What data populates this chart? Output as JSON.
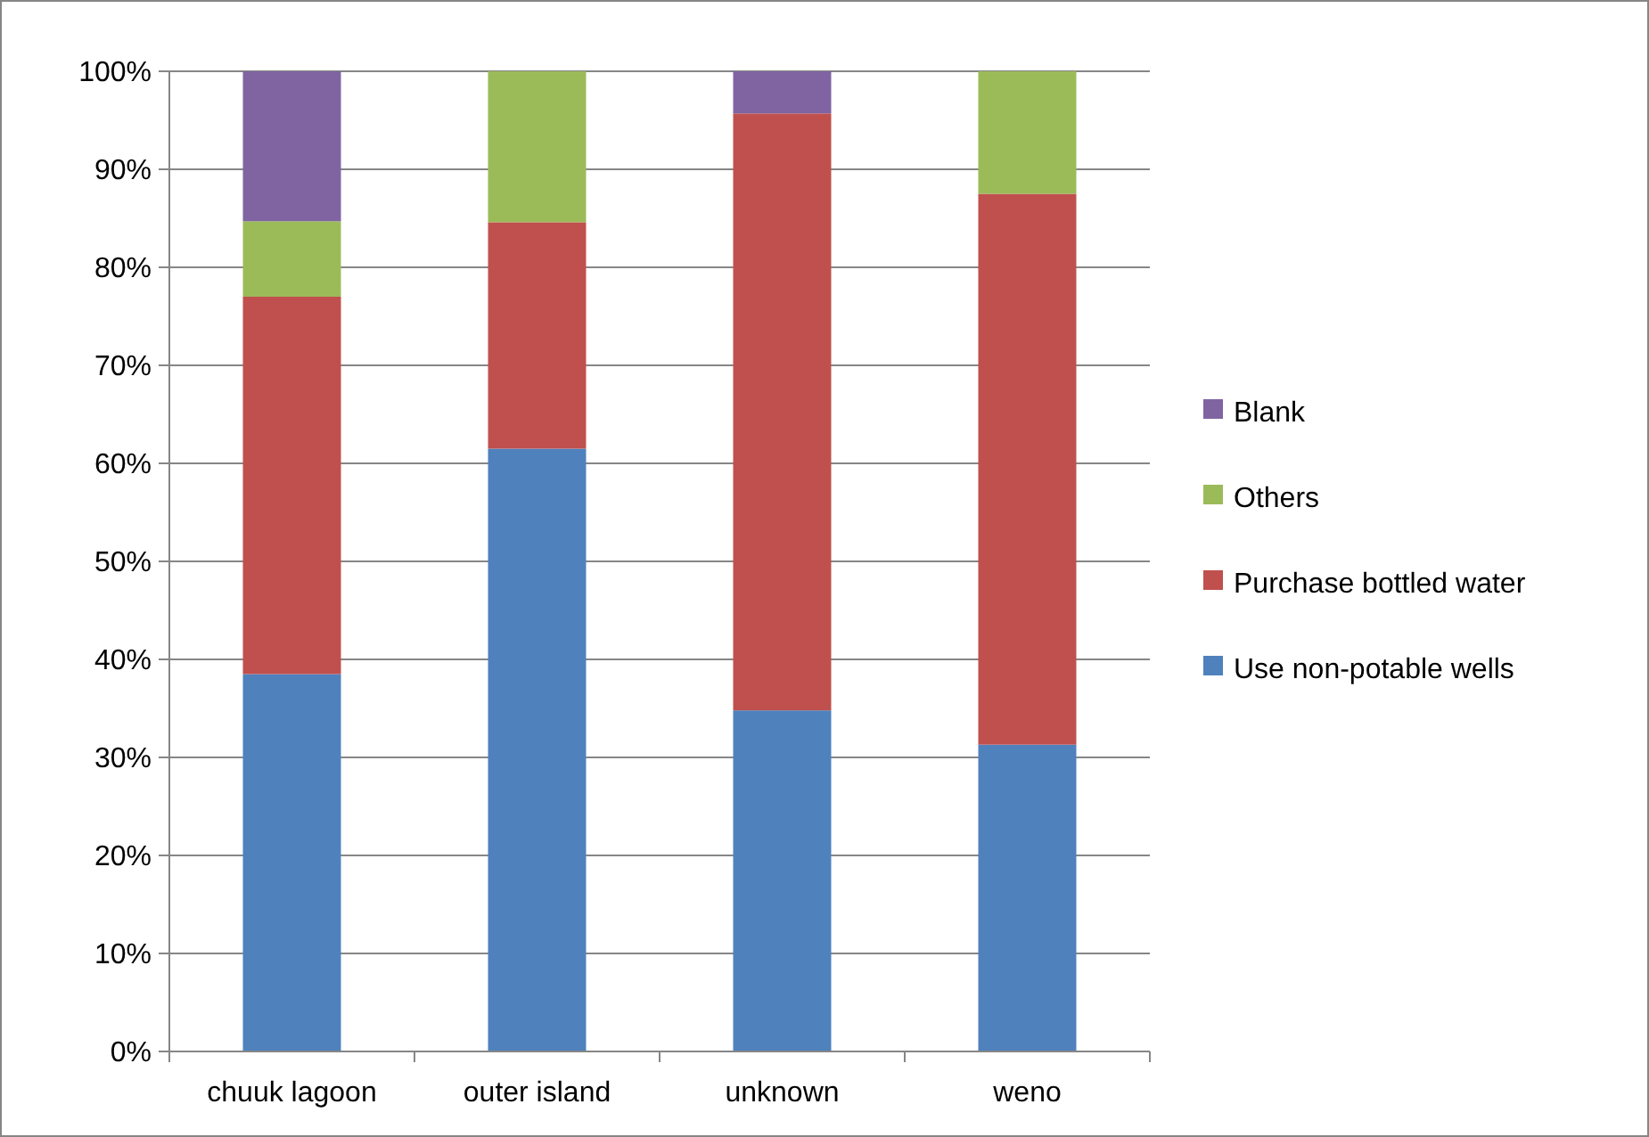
{
  "chart_data": {
    "type": "bar",
    "stacked": true,
    "categories": [
      "chuuk lagoon",
      "outer island",
      "unknown",
      "weno"
    ],
    "series": [
      {
        "name": "Use non-potable wells",
        "color": "#4f81bd",
        "values": [
          38.5,
          61.5,
          34.8,
          31.3
        ]
      },
      {
        "name": "Purchase bottled water",
        "color": "#c0504d",
        "values": [
          38.5,
          23.1,
          60.9,
          56.2
        ]
      },
      {
        "name": "Others",
        "color": "#9bbb59",
        "values": [
          7.7,
          15.4,
          null,
          12.5
        ]
      },
      {
        "name": "Blank",
        "color": "#8064a2",
        "values": [
          15.3,
          null,
          4.3,
          null
        ]
      }
    ],
    "ylim": [
      0,
      100
    ],
    "yticks": [
      {
        "value": 0,
        "label": "0%"
      },
      {
        "value": 10,
        "label": "10%"
      },
      {
        "value": 20,
        "label": "20%"
      },
      {
        "value": 30,
        "label": "30%"
      },
      {
        "value": 40,
        "label": "40%"
      },
      {
        "value": 50,
        "label": "50%"
      },
      {
        "value": 60,
        "label": "60%"
      },
      {
        "value": 70,
        "label": "70%"
      },
      {
        "value": 80,
        "label": "80%"
      },
      {
        "value": 90,
        "label": "90%"
      },
      {
        "value": 100,
        "label": "100%"
      }
    ],
    "grid": "y",
    "legend": "right"
  }
}
